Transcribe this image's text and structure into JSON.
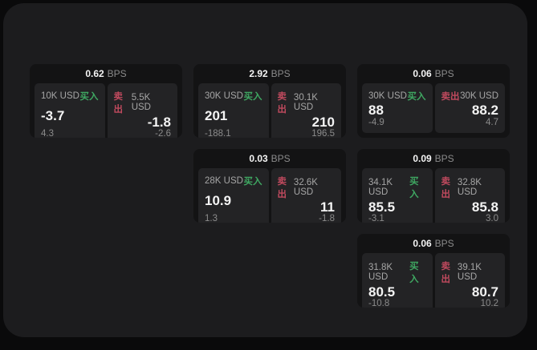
{
  "theme": {
    "page_bg": "#0a0a0b",
    "panel_bg": "#1c1c1e",
    "card_bg": "#131314",
    "tile_bg": "#232325",
    "value_white": "#f4f4f4",
    "label_gray": "#a6a6a6",
    "muted_gray": "#8b8b8b",
    "buy_green": "#3fa862",
    "sell_red": "#c04a5e"
  },
  "labels": {
    "bps": "BPS",
    "buy": "买入",
    "sell": "卖出"
  },
  "cards": [
    {
      "col": 1,
      "row": 1,
      "bps": "0.62",
      "buy": {
        "amount": "10K USD",
        "price": "-3.7",
        "delta": "4.3"
      },
      "sell": {
        "amount": "5.5K USD",
        "price": "-1.8",
        "delta": "-2.6"
      }
    },
    {
      "col": 2,
      "row": 1,
      "bps": "2.92",
      "buy": {
        "amount": "30K USD",
        "price": "201",
        "delta": "-188.1"
      },
      "sell": {
        "amount": "30.1K USD",
        "price": "210",
        "delta": "196.5"
      }
    },
    {
      "col": 3,
      "row": 1,
      "bps": "0.06",
      "buy": {
        "amount": "30K USD",
        "price": "88",
        "delta": "-4.9"
      },
      "sell": {
        "amount": "30K USD",
        "price": "88.2",
        "delta": "4.7"
      }
    },
    {
      "col": 2,
      "row": 2,
      "bps": "0.03",
      "buy": {
        "amount": "28K USD",
        "price": "10.9",
        "delta": "1.3"
      },
      "sell": {
        "amount": "32.6K USD",
        "price": "11",
        "delta": "-1.8"
      }
    },
    {
      "col": 3,
      "row": 2,
      "bps": "0.09",
      "buy": {
        "amount": "34.1K USD",
        "price": "85.5",
        "delta": "-3.1"
      },
      "sell": {
        "amount": "32.8K USD",
        "price": "85.8",
        "delta": "3.0"
      }
    },
    {
      "col": 3,
      "row": 3,
      "bps": "0.06",
      "buy": {
        "amount": "31.8K USD",
        "price": "80.5",
        "delta": "-10.8"
      },
      "sell": {
        "amount": "39.1K USD",
        "price": "80.7",
        "delta": "10.2"
      }
    }
  ]
}
